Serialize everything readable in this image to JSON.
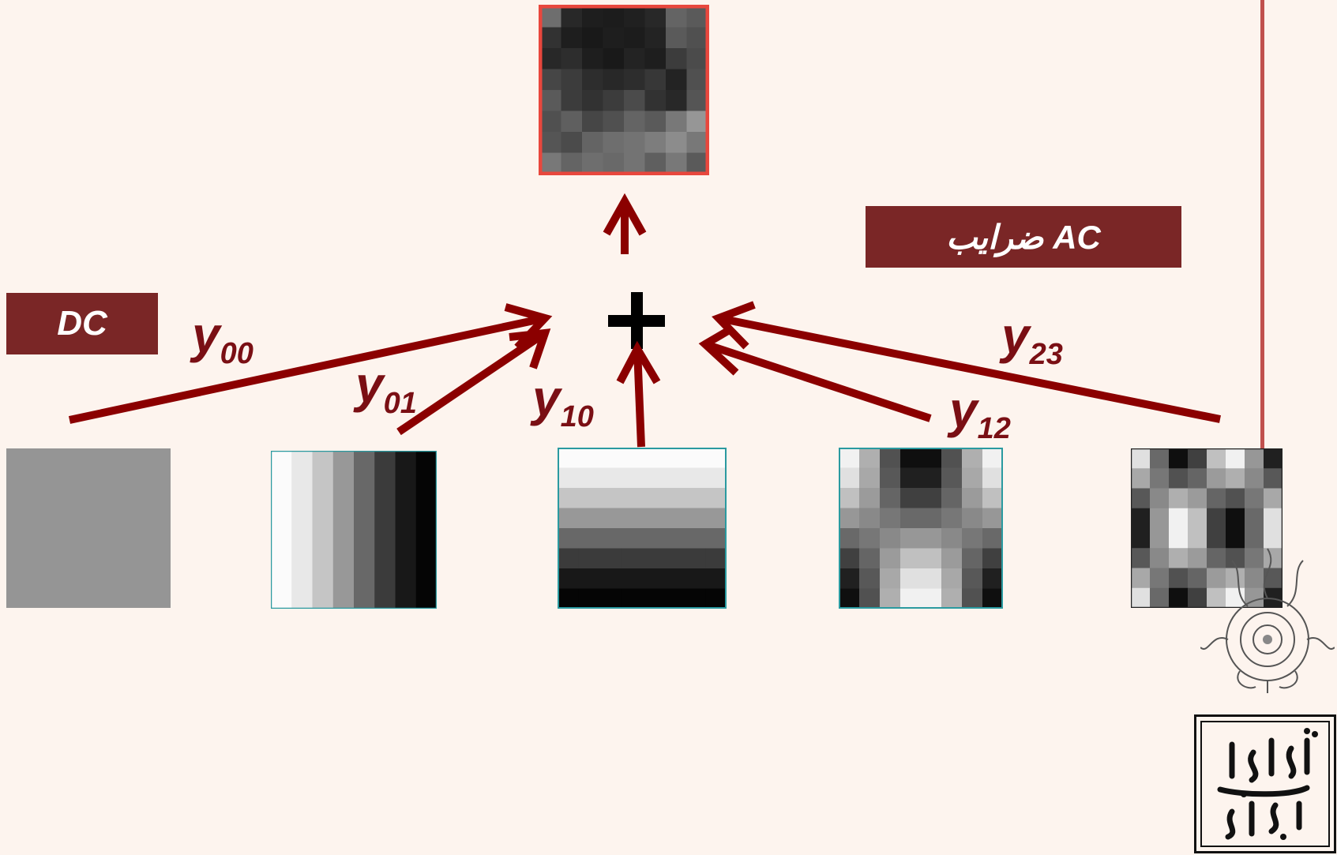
{
  "labels": {
    "dc": "DC",
    "ac": "ضرایب AC"
  },
  "coefficients": [
    {
      "base": "y",
      "sub": "00"
    },
    {
      "base": "y",
      "sub": "01"
    },
    {
      "base": "y",
      "sub": "10"
    },
    {
      "base": "y",
      "sub": "12"
    },
    {
      "base": "y",
      "sub": "23"
    }
  ],
  "operator": "+",
  "colors": {
    "arrow": "#8b0000",
    "label_bg": "#7a2626",
    "background": "#fdf4ee",
    "frame_line": "#c0504d"
  },
  "icons": {
    "ornament": "floral-ornament-icon",
    "logo": "university-logo-icon"
  }
}
